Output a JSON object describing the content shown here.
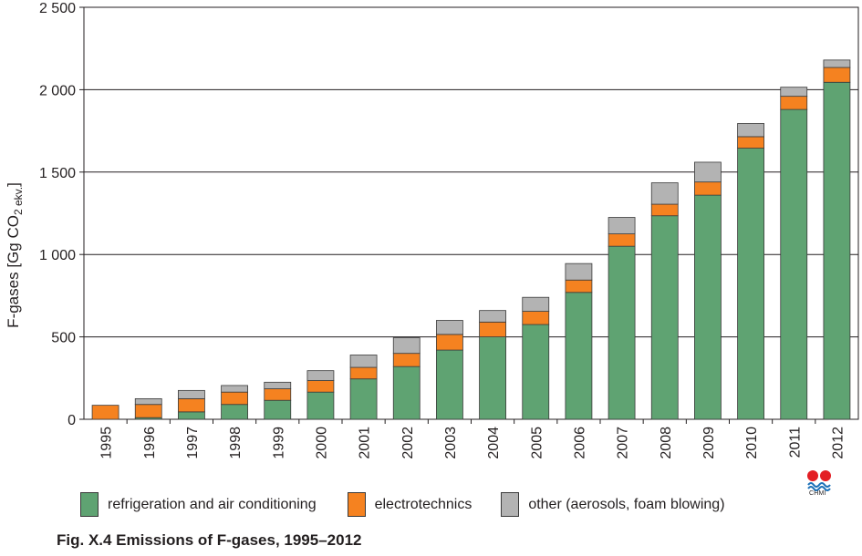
{
  "chart_data": {
    "type": "bar",
    "stacked": true,
    "categories": [
      "1995",
      "1996",
      "1997",
      "1998",
      "1999",
      "2000",
      "2001",
      "2002",
      "2003",
      "2004",
      "2005",
      "2006",
      "2007",
      "2008",
      "2009",
      "2010",
      "2011",
      "2012"
    ],
    "series": [
      {
        "name": "refrigeration and air conditioning",
        "color": "#5fa372",
        "values": [
          0,
          10,
          45,
          90,
          115,
          165,
          245,
          320,
          420,
          500,
          575,
          770,
          1050,
          1235,
          1360,
          1645,
          1880,
          2045
        ]
      },
      {
        "name": "electrotechnics",
        "color": "#f58220",
        "values": [
          85,
          80,
          80,
          75,
          70,
          70,
          70,
          80,
          95,
          90,
          80,
          75,
          75,
          70,
          80,
          70,
          80,
          90
        ]
      },
      {
        "name": "other (aerosols, foam blowing)",
        "color": "#b3b3b3",
        "values": [
          0,
          35,
          50,
          40,
          40,
          60,
          75,
          95,
          85,
          70,
          85,
          100,
          100,
          130,
          120,
          80,
          55,
          45
        ]
      }
    ],
    "ylim": [
      0,
      2500
    ],
    "yticks": [
      0,
      500,
      1000,
      1500,
      2000,
      2500
    ],
    "ytick_labels": [
      "0",
      "500",
      "1 000",
      "1 500",
      "2 000",
      "2 500"
    ],
    "ylabel_main": "F-gases [Gg CO",
    "ylabel_sub": "2 ekv.",
    "ylabel_end": "]",
    "grid": "horizontal",
    "legend_position": "bottom"
  },
  "caption": "Fig. X.4  Emissions of F-gases, 1995–2012",
  "logo": {
    "text": "CHMI",
    "colors": [
      "#e31e24",
      "#1d71b8"
    ]
  }
}
